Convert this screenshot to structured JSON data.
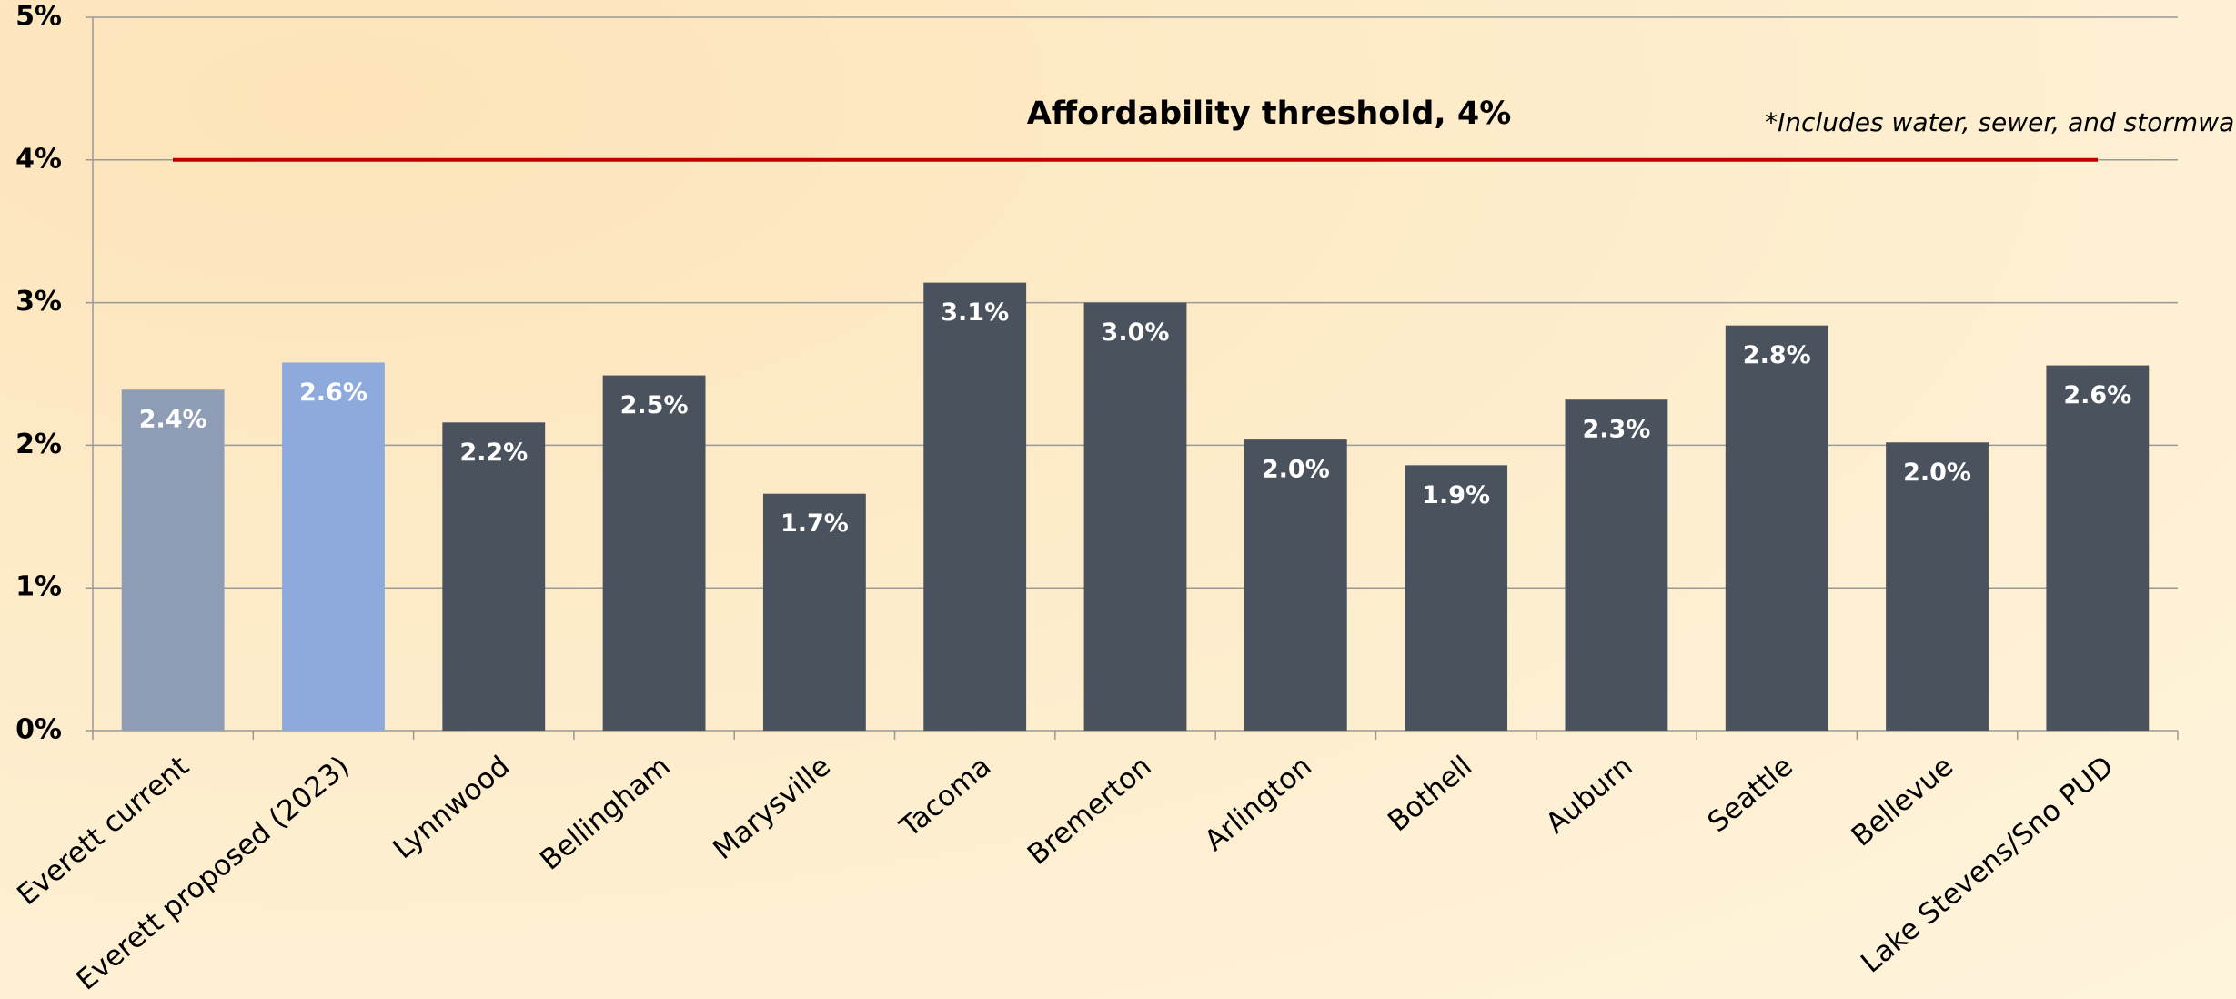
{
  "chart_data": {
    "type": "bar",
    "categories": [
      "Everett current",
      "Everett proposed (2023)",
      "Lynnwood",
      "Bellingham",
      "Marysville",
      "Tacoma",
      "Bremerton",
      "Arlington",
      "Bothell",
      "Auburn",
      "Seattle",
      "Bellevue",
      "Lake Stevens/Sno PUD"
    ],
    "values": [
      2.39,
      2.58,
      2.16,
      2.49,
      1.66,
      3.14,
      3.0,
      2.04,
      1.86,
      2.32,
      2.84,
      2.02,
      2.56
    ],
    "value_labels": [
      "2.4%",
      "2.6%",
      "2.2%",
      "2.5%",
      "1.7%",
      "3.1%",
      "3.0%",
      "2.0%",
      "1.9%",
      "2.3%",
      "2.8%",
      "2.0%",
      "2.6%"
    ],
    "colors": [
      "#8e9db5",
      "#8eaadd",
      "#4a525d",
      "#4a525d",
      "#4a525d",
      "#4a525d",
      "#4a525d",
      "#4a525d",
      "#4a525d",
      "#4a525d",
      "#4a525d",
      "#4a525d",
      "#4a525d"
    ],
    "ylim": [
      0,
      5
    ],
    "yticks": [
      {
        "value": 0,
        "label": "0%"
      },
      {
        "value": 1,
        "label": "1%"
      },
      {
        "value": 2,
        "label": "2%"
      },
      {
        "value": 3,
        "label": "3%"
      },
      {
        "value": 4,
        "label": "4%"
      },
      {
        "value": 5,
        "label": "5%"
      }
    ],
    "grid": true,
    "threshold": {
      "value": 4,
      "label": "Affordability threshold, 4%",
      "color": "#c00000"
    },
    "note": "*Includes water, sewer, and stormwater"
  }
}
